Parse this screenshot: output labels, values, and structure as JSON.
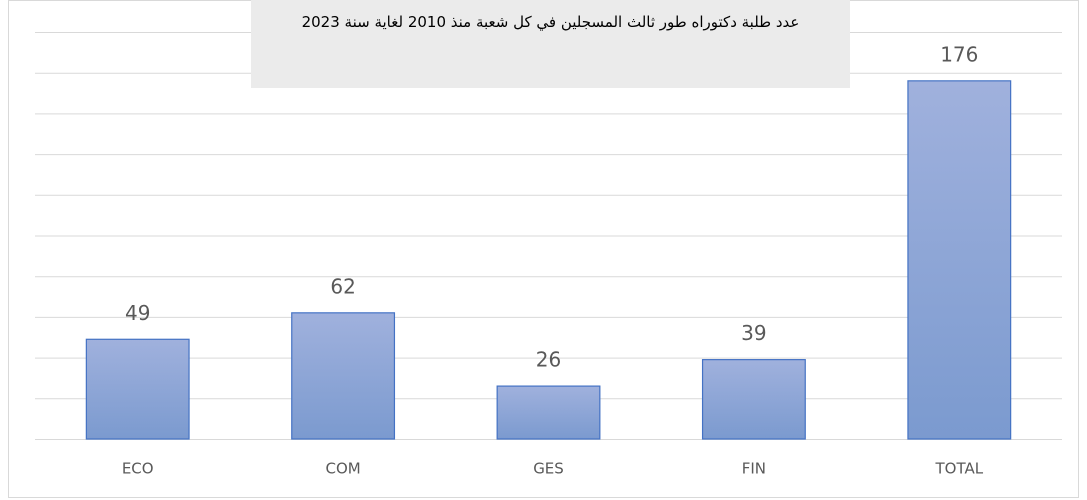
{
  "chart_data": {
    "type": "bar",
    "title": "عدد طلبة دكتوراه طور ثالث المسجلين في كل شعبة منذ 2010 لغاية سنة 2023",
    "categories": [
      "ECO",
      "COM",
      "GES",
      "FIN",
      "TOTAL"
    ],
    "values": [
      49,
      62,
      26,
      39,
      176
    ],
    "color": "#4472c4",
    "ylim": [
      0,
      200
    ],
    "yticks": [
      0,
      20,
      40,
      60,
      80,
      100,
      120,
      140,
      160,
      180,
      200
    ],
    "grid": true
  }
}
